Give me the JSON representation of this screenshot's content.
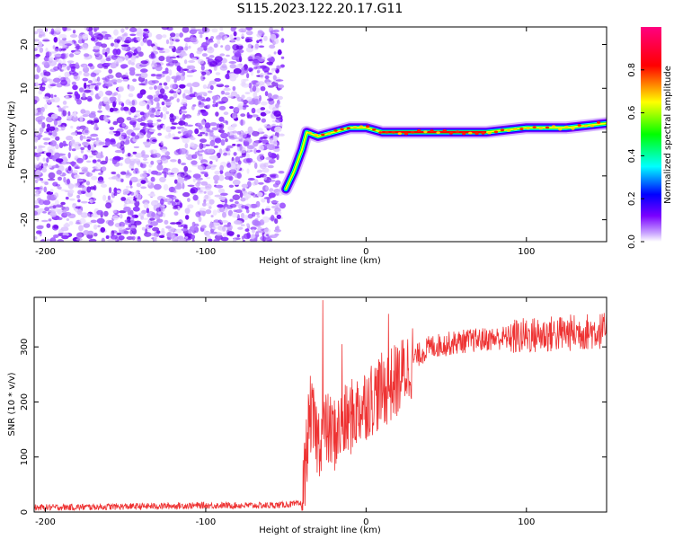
{
  "title": "S115.2023.122.20.17.G11",
  "chart_data": [
    {
      "type": "heatmap",
      "xlabel": "Height of straight line (km)",
      "ylabel": "Frequency (Hz)",
      "xlim": [
        -207,
        150
      ],
      "ylim": [
        -25,
        24
      ],
      "x_ticks": [
        -200,
        -100,
        0,
        100
      ],
      "y_ticks": [
        -20,
        -10,
        0,
        10,
        20
      ],
      "colorbar": {
        "label": "Normalized spectral amplitude",
        "range": [
          0.0,
          1.0
        ],
        "ticks": [
          "0.0",
          "0.2",
          "0.4",
          "0.6",
          "0.8"
        ],
        "colors": [
          "#ffffff",
          "#7a00ff",
          "#0000ff",
          "#00ffff",
          "#00ff00",
          "#ffff00",
          "#ff0000",
          "#ff0080"
        ]
      },
      "ridge": [
        {
          "x": -50,
          "y": -13
        },
        {
          "x": -45,
          "y": -9
        },
        {
          "x": -40,
          "y": -4
        },
        {
          "x": -37,
          "y": 0
        },
        {
          "x": -30,
          "y": -1
        },
        {
          "x": -20,
          "y": 0
        },
        {
          "x": -10,
          "y": 1
        },
        {
          "x": 0,
          "y": 1
        },
        {
          "x": 10,
          "y": 0
        },
        {
          "x": 50,
          "y": 0
        },
        {
          "x": 75,
          "y": 0
        },
        {
          "x": 100,
          "y": 1
        },
        {
          "x": 125,
          "y": 1
        },
        {
          "x": 150,
          "y": 2
        }
      ],
      "noise_region_x": [
        -207,
        -52
      ],
      "grid": false
    },
    {
      "type": "line",
      "xlabel": "Height of straight line (km)",
      "ylabel": "SNR (10 * v/v)",
      "xlim": [
        -207,
        150
      ],
      "ylim": [
        0,
        390
      ],
      "x_ticks": [
        -200,
        -100,
        0,
        100
      ],
      "y_ticks": [
        0,
        100,
        200,
        300
      ],
      "color": "#ee3333",
      "envelope": [
        {
          "x": -207,
          "y": 8
        },
        {
          "x": -150,
          "y": 10
        },
        {
          "x": -100,
          "y": 12
        },
        {
          "x": -60,
          "y": 12
        },
        {
          "x": -40,
          "y": 15
        },
        {
          "x": -35,
          "y": 180
        },
        {
          "x": -30,
          "y": 130
        },
        {
          "x": -25,
          "y": 150
        },
        {
          "x": -20,
          "y": 140
        },
        {
          "x": -10,
          "y": 170
        },
        {
          "x": 0,
          "y": 200
        },
        {
          "x": 10,
          "y": 220
        },
        {
          "x": 20,
          "y": 240
        },
        {
          "x": 30,
          "y": 280
        },
        {
          "x": 40,
          "y": 300
        },
        {
          "x": 60,
          "y": 310
        },
        {
          "x": 80,
          "y": 315
        },
        {
          "x": 100,
          "y": 320
        },
        {
          "x": 125,
          "y": 325
        },
        {
          "x": 150,
          "y": 330
        }
      ],
      "peaks": [
        {
          "x": -27,
          "y": 385
        },
        {
          "x": -15,
          "y": 305
        },
        {
          "x": 14,
          "y": 360
        }
      ],
      "grid": false
    }
  ]
}
